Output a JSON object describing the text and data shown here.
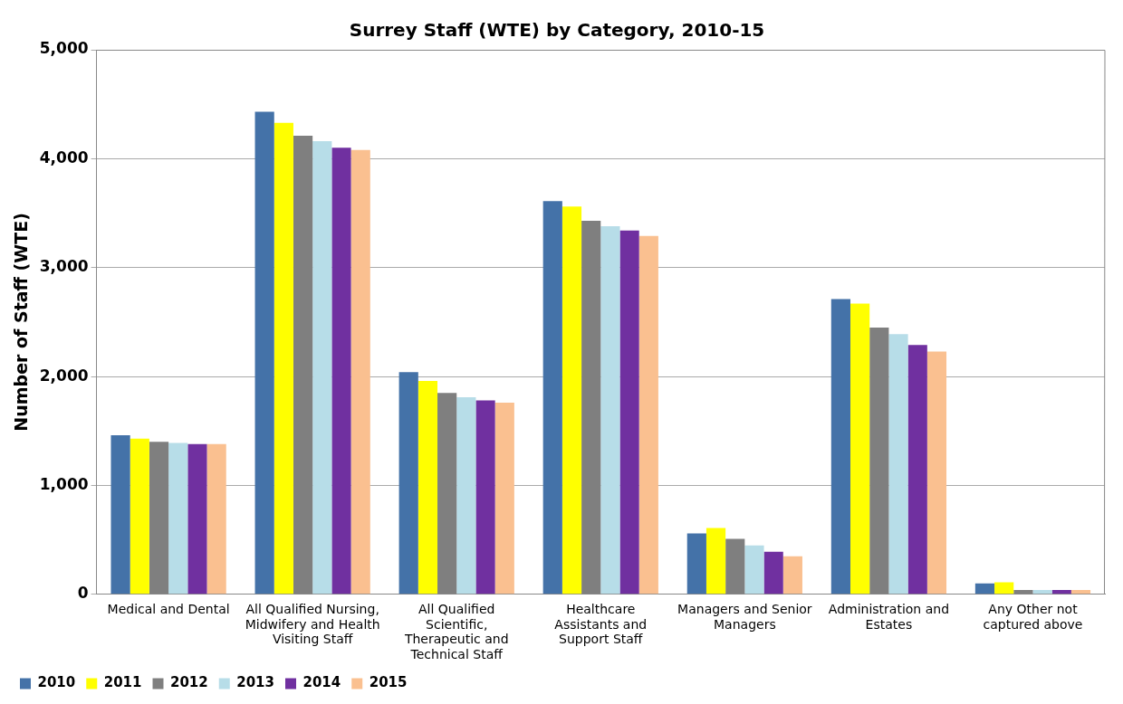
{
  "chart_data": {
    "type": "bar",
    "title": "Surrey Staff (WTE) by Category, 2010-15",
    "ylabel": "Number of Staff (WTE)",
    "categories": [
      "Medical and Dental",
      "All Qualified Nursing, Midwifery and Health Visiting Staff",
      "All Qualified Scientific, Therapeutic and Technical Staff",
      "Healthcare Assistants and Support Staff",
      "Managers and Senior Managers",
      "Administration and Estates",
      "Any Other not captured above"
    ],
    "series": [
      {
        "name": "2010",
        "color": "#4472a8",
        "values": [
          1460,
          4430,
          2040,
          3610,
          560,
          2710,
          100
        ]
      },
      {
        "name": "2011",
        "color": "#ffff00",
        "values": [
          1430,
          4330,
          1960,
          3560,
          610,
          2670,
          110
        ]
      },
      {
        "name": "2012",
        "color": "#7f7f7f",
        "values": [
          1400,
          4210,
          1850,
          3430,
          510,
          2450,
          40
        ]
      },
      {
        "name": "2013",
        "color": "#b7dde8",
        "values": [
          1390,
          4160,
          1810,
          3380,
          450,
          2390,
          40
        ]
      },
      {
        "name": "2014",
        "color": "#7030a0",
        "values": [
          1380,
          4100,
          1780,
          3340,
          390,
          2290,
          40
        ]
      },
      {
        "name": "2015",
        "color": "#fac090",
        "values": [
          1380,
          4080,
          1760,
          3290,
          350,
          2230,
          40
        ]
      }
    ],
    "ylim": [
      0,
      5000
    ],
    "yticks": [
      {
        "value": 0,
        "label": "0"
      },
      {
        "value": 1000,
        "label": "1,000"
      },
      {
        "value": 2000,
        "label": "2,000"
      },
      {
        "value": 3000,
        "label": "3,000"
      },
      {
        "value": 4000,
        "label": "4,000"
      },
      {
        "value": 5000,
        "label": "5,000"
      }
    ],
    "grid": "y",
    "legend": "bottom left"
  }
}
